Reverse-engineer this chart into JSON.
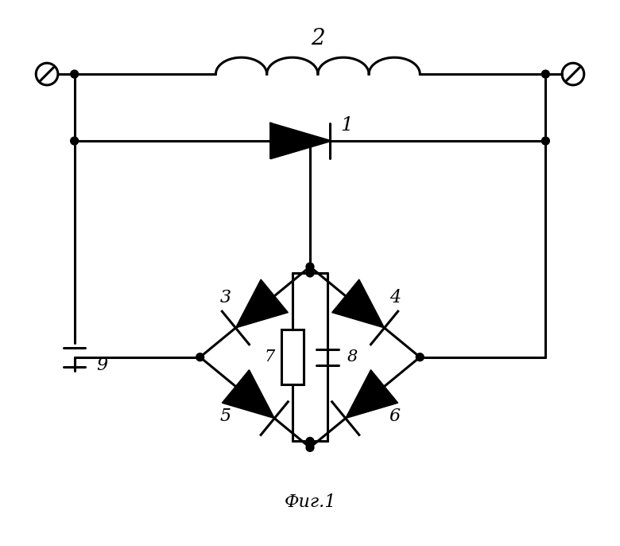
{
  "bg_color": "#ffffff",
  "line_color": "#000000",
  "title": "Фиг.1",
  "title_fontsize": 16,
  "fig_width": 7.8,
  "fig_height": 6.86,
  "dpi": 100
}
